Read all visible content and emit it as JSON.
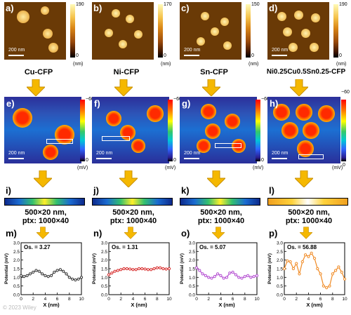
{
  "panels_top": [
    {
      "letter": "a)",
      "material": "Cu-CFP",
      "scale": "200 nm",
      "cbar_max": "190",
      "cbar_min": "0",
      "unit": "(nm)"
    },
    {
      "letter": "b)",
      "material": "Ni-CFP",
      "scale": "",
      "cbar_max": "170",
      "cbar_min": "0",
      "unit": "(nm)"
    },
    {
      "letter": "c)",
      "material": "Sn-CFP",
      "scale": "200 nm",
      "cbar_max": "150",
      "cbar_min": "0",
      "unit": "(nm)"
    },
    {
      "letter": "d)",
      "material": "Ni0.25Cu0.5Sn0.25-CFP",
      "scale": "200 nm",
      "cbar_max": "190",
      "cbar_min": "0",
      "unit": "(nm)"
    }
  ],
  "panels_kpfm": [
    {
      "letter": "e)",
      "scale": "200 nm",
      "cbar_max": "−60",
      "cbar_min": "0",
      "unit": "(mV)"
    },
    {
      "letter": "f)",
      "scale": "200 nm",
      "cbar_max": "−60",
      "cbar_min": "0",
      "unit": "(mV)"
    },
    {
      "letter": "g)",
      "scale": "200 nm",
      "cbar_max": "−60",
      "cbar_min": "0",
      "unit": "(mV)"
    },
    {
      "letter": "h)",
      "scale": "200 nm",
      "cbar_max": "−60",
      "cbar_min": "0",
      "unit": "(mV)"
    }
  ],
  "panels_strip": [
    {
      "letter": "i)",
      "line1": "500×20 nm,",
      "line2": "ptx: 1000×40"
    },
    {
      "letter": "j)",
      "line1": "500×20 nm,",
      "line2": "ptx: 1000×40"
    },
    {
      "letter": "k)",
      "line1": "500×20 nm,",
      "line2": "ptx: 1000×40"
    },
    {
      "letter": "l)",
      "line1": "500×20 nm,",
      "line2": "ptx: 1000×40"
    }
  ],
  "plot_letters": [
    "m)",
    "n)",
    "o)",
    "p)"
  ],
  "plot_os": [
    "Os. = 3.27",
    "Os. = 1.31",
    "Os. = 5.07",
    "Os. = 56.88"
  ],
  "chart_data": [
    {
      "type": "line",
      "xlabel": "X (nm)",
      "ylabel": "Potential (mV)",
      "xlim": [
        0,
        10
      ],
      "ylim": [
        0,
        3.0
      ],
      "xticks": [
        "0",
        "2",
        "4",
        "6",
        "8",
        "10"
      ],
      "yticks": [
        "0.0",
        "0.5",
        "1.0",
        "1.5",
        "2.0",
        "2.5",
        "3.0"
      ],
      "color": "#333333",
      "series": [
        {
          "x": [
            0,
            0.5,
            1,
            1.5,
            2,
            2.5,
            3,
            3.5,
            4,
            4.5,
            5,
            5.5,
            6,
            6.5,
            7,
            7.5,
            8,
            8.5,
            9,
            9.5,
            10
          ],
          "values": [
            1.1,
            1.05,
            1.1,
            1.2,
            1.3,
            1.4,
            1.35,
            1.2,
            1.1,
            1.05,
            1.1,
            1.3,
            1.4,
            1.45,
            1.35,
            1.2,
            1.0,
            0.9,
            0.85,
            0.9,
            1.0
          ]
        }
      ]
    },
    {
      "type": "line",
      "xlabel": "X (nm)",
      "ylabel": "Potential (mV)",
      "xlim": [
        0,
        10
      ],
      "ylim": [
        0,
        3.0
      ],
      "xticks": [
        "0",
        "2",
        "4",
        "6",
        "8",
        "10"
      ],
      "yticks": [
        "0.0",
        "0.5",
        "1.0",
        "1.5",
        "2.0",
        "2.5",
        "3.0"
      ],
      "color": "#d62828",
      "series": [
        {
          "x": [
            0,
            0.5,
            1,
            1.5,
            2,
            2.5,
            3,
            3.5,
            4,
            4.5,
            5,
            5.5,
            6,
            6.5,
            7,
            7.5,
            8,
            8.5,
            9,
            9.5,
            10
          ],
          "values": [
            1.15,
            1.25,
            1.35,
            1.4,
            1.45,
            1.5,
            1.5,
            1.48,
            1.45,
            1.45,
            1.5,
            1.5,
            1.48,
            1.45,
            1.45,
            1.5,
            1.55,
            1.55,
            1.5,
            1.48,
            1.5
          ]
        }
      ]
    },
    {
      "type": "line",
      "xlabel": "X (nm)",
      "ylabel": "Potential (mV)",
      "xlim": [
        0,
        10
      ],
      "ylim": [
        0,
        3.0
      ],
      "xticks": [
        "0",
        "2",
        "4",
        "6",
        "8",
        "10"
      ],
      "yticks": [
        "0.0",
        "0.5",
        "1.0",
        "1.5",
        "2.0",
        "2.5",
        "3.0"
      ],
      "color": "#b34bd1",
      "series": [
        {
          "x": [
            0,
            0.5,
            1,
            1.5,
            2,
            2.5,
            3,
            3.5,
            4,
            4.5,
            5,
            5.5,
            6,
            6.5,
            7,
            7.5,
            8,
            8.5,
            9,
            9.5,
            10
          ],
          "values": [
            1.55,
            1.4,
            1.2,
            1.1,
            1.0,
            0.95,
            1.05,
            1.2,
            1.1,
            0.95,
            1.0,
            1.25,
            1.3,
            1.15,
            1.0,
            0.95,
            1.05,
            1.1,
            1.0,
            1.05,
            1.1
          ]
        }
      ]
    },
    {
      "type": "line",
      "xlabel": "X (nm)",
      "ylabel": "Potential (mV)",
      "xlim": [
        0,
        10
      ],
      "ylim": [
        0,
        3.0
      ],
      "xticks": [
        "0",
        "2",
        "4",
        "6",
        "8",
        "10"
      ],
      "yticks": [
        "0.0",
        "0.5",
        "1.0",
        "1.5",
        "2.0",
        "2.5",
        "3.0"
      ],
      "color": "#f08a24",
      "series": [
        {
          "x": [
            0,
            0.5,
            1,
            1.5,
            2,
            2.5,
            3,
            3.5,
            4,
            4.5,
            5,
            5.5,
            6,
            6.5,
            7,
            7.5,
            8,
            8.5,
            9,
            9.5,
            10
          ],
          "values": [
            1.5,
            1.95,
            1.9,
            1.5,
            1.8,
            1.2,
            1.9,
            2.3,
            2.2,
            2.4,
            2.1,
            1.5,
            1.2,
            0.5,
            0.4,
            0.5,
            1.2,
            1.4,
            1.6,
            1.3,
            0.9
          ]
        }
      ]
    }
  ],
  "colors": {
    "arrow": "#f5b800",
    "arrow_stroke": "#c99000"
  },
  "watermark": "© 2023 Wiley"
}
